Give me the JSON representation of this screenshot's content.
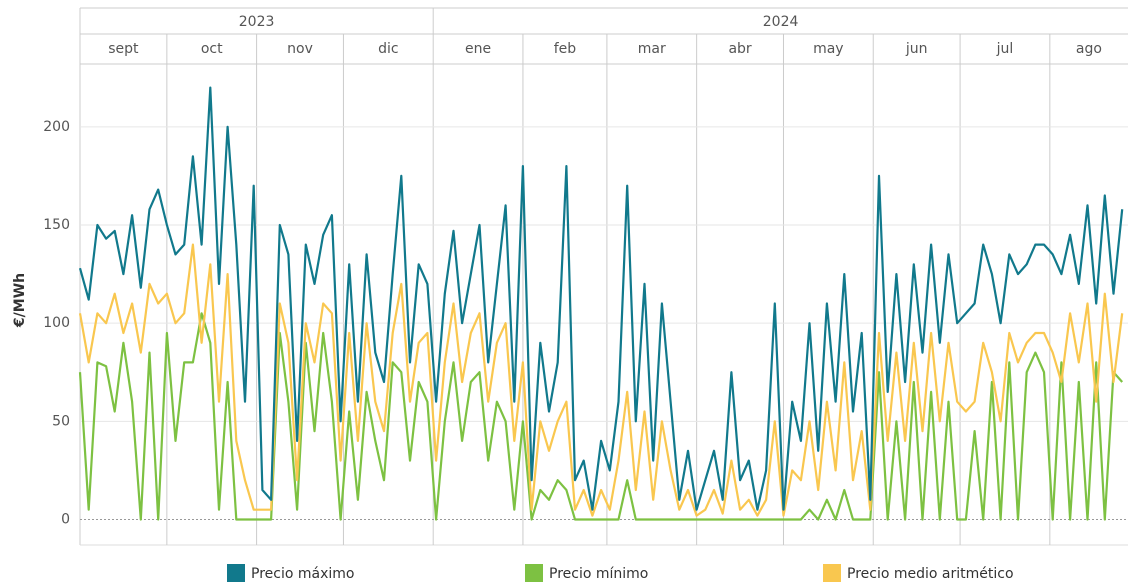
{
  "chart_data": {
    "type": "line",
    "ylabel": "€/MWh",
    "years": [
      {
        "label": "2023",
        "start": 0
      },
      {
        "label": "2024",
        "start": 122
      }
    ],
    "months": [
      {
        "label": "sept",
        "start": 0
      },
      {
        "label": "oct",
        "start": 30
      },
      {
        "label": "nov",
        "start": 61
      },
      {
        "label": "dic",
        "start": 91
      },
      {
        "label": "ene",
        "start": 122
      },
      {
        "label": "feb",
        "start": 153
      },
      {
        "label": "mar",
        "start": 182
      },
      {
        "label": "abr",
        "start": 213
      },
      {
        "label": "may",
        "start": 243
      },
      {
        "label": "jun",
        "start": 274
      },
      {
        "label": "jul",
        "start": 304
      },
      {
        "label": "ago",
        "start": 335
      }
    ],
    "xlim": [
      0,
      362
    ],
    "ylim": [
      -13,
      232
    ],
    "yticks": [
      0,
      50,
      100,
      150,
      200
    ],
    "grid": true,
    "x": [
      0,
      3,
      6,
      9,
      12,
      15,
      18,
      21,
      24,
      27,
      30,
      33,
      36,
      39,
      42,
      45,
      48,
      51,
      54,
      57,
      60,
      63,
      66,
      69,
      72,
      75,
      78,
      81,
      84,
      87,
      90,
      93,
      96,
      99,
      102,
      105,
      108,
      111,
      114,
      117,
      120,
      123,
      126,
      129,
      132,
      135,
      138,
      141,
      144,
      147,
      150,
      153,
      156,
      159,
      162,
      165,
      168,
      171,
      174,
      177,
      180,
      183,
      186,
      189,
      192,
      195,
      198,
      201,
      204,
      207,
      210,
      213,
      216,
      219,
      222,
      225,
      228,
      231,
      234,
      237,
      240,
      243,
      246,
      249,
      252,
      255,
      258,
      261,
      264,
      267,
      270,
      273,
      276,
      279,
      282,
      285,
      288,
      291,
      294,
      297,
      300,
      303,
      306,
      309,
      312,
      315,
      318,
      321,
      324,
      327,
      330,
      333,
      336,
      339,
      342,
      345,
      348,
      351,
      354,
      357,
      360
    ],
    "series": [
      {
        "name": "Precio mínimo",
        "color": "#7dc142",
        "values": [
          75,
          5,
          80,
          78,
          55,
          90,
          60,
          0,
          85,
          0,
          95,
          40,
          80,
          80,
          105,
          90,
          5,
          70,
          0,
          0,
          0,
          0,
          0,
          95,
          60,
          5,
          90,
          45,
          95,
          60,
          0,
          55,
          10,
          65,
          40,
          20,
          80,
          75,
          30,
          70,
          60,
          0,
          50,
          80,
          40,
          70,
          75,
          30,
          60,
          50,
          5,
          50,
          0,
          15,
          10,
          20,
          15,
          0,
          0,
          0,
          0,
          0,
          0,
          20,
          0,
          0,
          0,
          0,
          0,
          0,
          0,
          0,
          0,
          0,
          0,
          0,
          0,
          0,
          0,
          0,
          0,
          0,
          0,
          0,
          5,
          0,
          10,
          0,
          15,
          0,
          0,
          0,
          75,
          0,
          50,
          0,
          70,
          0,
          65,
          0,
          60,
          0,
          0,
          45,
          0,
          70,
          0,
          80,
          0,
          75,
          85,
          75,
          0,
          80,
          0,
          70,
          0,
          80,
          0,
          75,
          70
        ]
      },
      {
        "name": "Precio medio aritmético",
        "color": "#f9c74f",
        "values": [
          105,
          80,
          105,
          100,
          115,
          95,
          110,
          85,
          120,
          110,
          115,
          100,
          105,
          140,
          90,
          130,
          60,
          125,
          40,
          20,
          5,
          5,
          5,
          110,
          90,
          20,
          100,
          80,
          110,
          105,
          30,
          95,
          40,
          100,
          60,
          45,
          95,
          120,
          60,
          90,
          95,
          30,
          80,
          110,
          70,
          95,
          105,
          60,
          90,
          100,
          40,
          80,
          5,
          50,
          35,
          50,
          60,
          5,
          15,
          2,
          15,
          5,
          30,
          65,
          15,
          55,
          10,
          50,
          25,
          5,
          15,
          2,
          5,
          15,
          3,
          30,
          5,
          10,
          2,
          10,
          50,
          2,
          25,
          20,
          50,
          15,
          60,
          25,
          80,
          20,
          45,
          5,
          95,
          40,
          85,
          40,
          90,
          45,
          95,
          50,
          90,
          60,
          55,
          60,
          90,
          75,
          50,
          95,
          80,
          90,
          95,
          95,
          85,
          70,
          105,
          80,
          110,
          60,
          115,
          70,
          105
        ]
      },
      {
        "name": "Precio máximo",
        "color": "#11798c",
        "values": [
          128,
          112,
          150,
          143,
          147,
          125,
          155,
          118,
          158,
          168,
          150,
          135,
          140,
          185,
          140,
          220,
          120,
          200,
          140,
          60,
          170,
          15,
          10,
          150,
          135,
          40,
          140,
          120,
          145,
          155,
          50,
          130,
          60,
          135,
          85,
          70,
          125,
          175,
          80,
          130,
          120,
          60,
          115,
          147,
          100,
          125,
          150,
          80,
          120,
          160,
          60,
          180,
          20,
          90,
          55,
          80,
          180,
          20,
          30,
          5,
          40,
          25,
          60,
          170,
          50,
          120,
          30,
          110,
          60,
          10,
          35,
          5,
          20,
          35,
          10,
          75,
          20,
          30,
          5,
          25,
          110,
          5,
          60,
          40,
          100,
          35,
          110,
          60,
          125,
          55,
          95,
          10,
          175,
          65,
          125,
          70,
          130,
          85,
          140,
          90,
          135,
          100,
          105,
          110,
          140,
          125,
          100,
          135,
          125,
          130,
          140,
          140,
          135,
          125,
          145,
          120,
          160,
          110,
          165,
          115,
          158
        ]
      }
    ],
    "legend_order": [
      2,
      0,
      1
    ]
  }
}
